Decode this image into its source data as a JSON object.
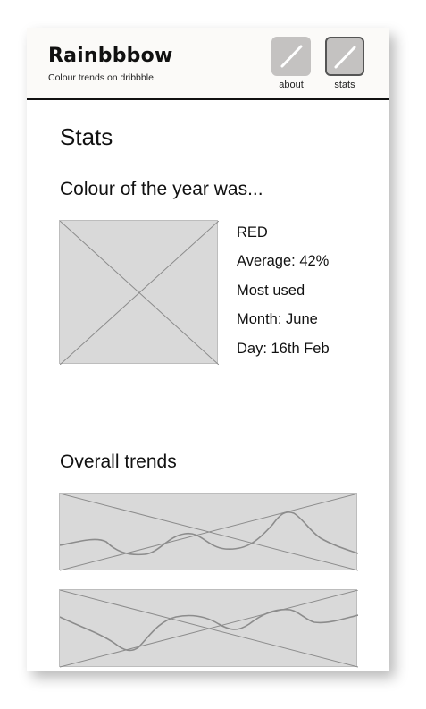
{
  "header": {
    "title": "Rainbbbow",
    "subtitle": "Colour trends on dribbble",
    "nav": [
      {
        "label": "about",
        "icon": "placeholder-icon",
        "active": false
      },
      {
        "label": "stats",
        "icon": "placeholder-icon",
        "active": true
      }
    ]
  },
  "main": {
    "title": "Stats",
    "colour_section": {
      "heading": "Colour of the year was...",
      "image": "image-placeholder",
      "stats": [
        "RED",
        "Average: 42%",
        "Most used",
        "Month: June",
        "Day: 16th Feb"
      ]
    },
    "trends_section": {
      "heading": "Overall trends",
      "charts": [
        "trend-chart-placeholder",
        "trend-chart-placeholder"
      ]
    }
  },
  "colors": {
    "header_bg": "#fbfaf8",
    "placeholder_bg": "#d9d9d9",
    "nav_button_bg": "#c4c2c1",
    "text": "#111111"
  }
}
